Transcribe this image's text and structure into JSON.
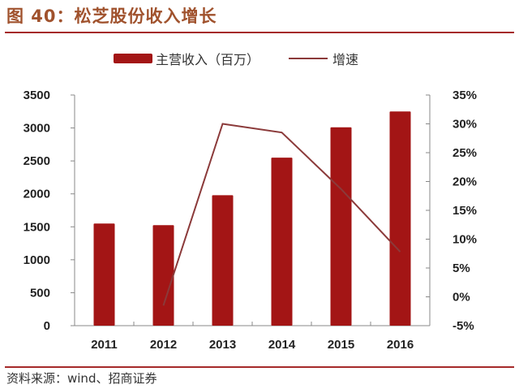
{
  "header": {
    "title": "图 40：松芝股份收入增长"
  },
  "legend": {
    "bar_label": "主营收入（百万）",
    "line_label": "增速"
  },
  "footer": {
    "source": "资料来源：wind、招商证券"
  },
  "colors": {
    "bar": "#a31515",
    "line": "#8b3a3a",
    "title": "#a0522d",
    "rule": "#a52a2a"
  },
  "chart_data": {
    "type": "bar+line",
    "title": "图 40：松芝股份收入增长",
    "categories": [
      "2011",
      "2012",
      "2013",
      "2014",
      "2015",
      "2016"
    ],
    "series": [
      {
        "name": "主营收入（百万）",
        "type": "bar",
        "axis": "left",
        "values": [
          1550,
          1525,
          1980,
          2550,
          3010,
          3250
        ]
      },
      {
        "name": "增速",
        "type": "line",
        "axis": "right",
        "values": [
          null,
          -1.5,
          30.0,
          28.5,
          18.7,
          7.8
        ],
        "unit": "%"
      }
    ],
    "left_axis": {
      "ylim": [
        0,
        3500
      ],
      "ticks": [
        "0",
        "500",
        "1000",
        "1500",
        "2000",
        "2500",
        "3000",
        "3500"
      ]
    },
    "right_axis": {
      "ylim": [
        -5,
        35
      ],
      "ticks": [
        "-5%",
        "0%",
        "5%",
        "10%",
        "15%",
        "20%",
        "25%",
        "30%",
        "35%"
      ]
    },
    "xlabel": "",
    "ylabel": "",
    "grid": false,
    "legend_position": "top"
  }
}
